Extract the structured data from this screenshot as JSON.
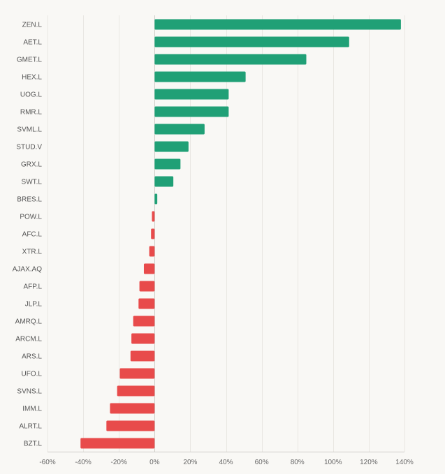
{
  "chart_data": {
    "type": "bar",
    "orientation": "horizontal",
    "title": "",
    "xlabel": "",
    "ylabel": "",
    "xlim": [
      -60,
      140
    ],
    "x_ticks": [
      -60,
      -40,
      -20,
      0,
      20,
      40,
      60,
      80,
      100,
      120,
      140
    ],
    "x_tick_labels": [
      "-60%",
      "-40%",
      "-20%",
      "0%",
      "20%",
      "40%",
      "60%",
      "80%",
      "100%",
      "120%",
      "140%"
    ],
    "grid": true,
    "legend": "none",
    "categories": [
      "ZEN.L",
      "AET.L",
      "GMET.L",
      "HEX.L",
      "UOG.L",
      "RMR.L",
      "SVML.L",
      "STUD.V",
      "GRX.L",
      "SWT.L",
      "BRES.L",
      "POW.L",
      "AFC.L",
      "XTR.L",
      "AJAX.AQ",
      "AFP.L",
      "JLP.L",
      "AMRQ.L",
      "ARCM.L",
      "ARS.L",
      "UFO.L",
      "SVNS.L",
      "IMM.L",
      "ALRT.L",
      "BZT.L"
    ],
    "values": [
      138,
      109,
      85,
      51,
      41.5,
      41.5,
      28,
      19,
      14.5,
      10.5,
      1.5,
      -1.5,
      -2,
      -3,
      -6,
      -8.5,
      -9,
      -12,
      -13,
      -13.5,
      -19.5,
      -21,
      -25,
      -27,
      -41.5
    ],
    "colors": {
      "positive": "#20a076",
      "negative": "#e84b4b"
    }
  }
}
